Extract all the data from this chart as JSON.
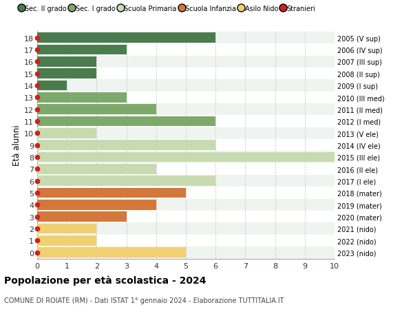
{
  "ages": [
    18,
    17,
    16,
    15,
    14,
    13,
    12,
    11,
    10,
    9,
    8,
    7,
    6,
    5,
    4,
    3,
    2,
    1,
    0
  ],
  "years": [
    "2005 (V sup)",
    "2006 (IV sup)",
    "2007 (III sup)",
    "2008 (II sup)",
    "2009 (I sup)",
    "2010 (III med)",
    "2011 (II med)",
    "2012 (I med)",
    "2013 (V ele)",
    "2014 (IV ele)",
    "2015 (III ele)",
    "2016 (II ele)",
    "2017 (I ele)",
    "2018 (mater)",
    "2019 (mater)",
    "2020 (mater)",
    "2021 (nido)",
    "2022 (nido)",
    "2023 (nido)"
  ],
  "values": [
    6,
    3,
    2,
    2,
    1,
    3,
    4,
    6,
    2,
    6,
    10,
    4,
    6,
    5,
    4,
    3,
    2,
    2,
    5
  ],
  "colors": [
    "#4a7c4e",
    "#4a7c4e",
    "#4a7c4e",
    "#4a7c4e",
    "#4a7c4e",
    "#7daa6b",
    "#7daa6b",
    "#7daa6b",
    "#c8dbb0",
    "#c8dbb0",
    "#c8dbb0",
    "#c8dbb0",
    "#c8dbb0",
    "#d4773a",
    "#d4773a",
    "#d4773a",
    "#f0d070",
    "#f0d070",
    "#f0d070"
  ],
  "row_bg_colors": [
    "#e8ede8",
    "#f5f5f5",
    "#e8ede8",
    "#f5f5f5",
    "#e8ede8",
    "#f5f5f5",
    "#e8ede8",
    "#f5f5f5",
    "#e8ede8",
    "#f5f5f5",
    "#e8ede8",
    "#f5f5f5",
    "#e8ede8",
    "#f5f5f5",
    "#e8ede8",
    "#f5f5f5",
    "#e8ede8",
    "#f5f5f5",
    "#e8ede8"
  ],
  "stranieri_color": "#cc2222",
  "legend_labels": [
    "Sec. II grado",
    "Sec. I grado",
    "Scuola Primaria",
    "Scuola Infanzia",
    "Asilo Nido",
    "Stranieri"
  ],
  "legend_colors": [
    "#4a7c4e",
    "#7daa6b",
    "#c8dbb0",
    "#d4773a",
    "#f0d070",
    "#cc2222"
  ],
  "title": "Popolazione per età scolastica - 2024",
  "subtitle": "COMUNE DI ROIATE (RM) - Dati ISTAT 1° gennaio 2024 - Elaborazione TUTTITALIA.IT",
  "ylabel": "Età alunni",
  "xlim": [
    0,
    10
  ],
  "xticks": [
    0,
    1,
    2,
    3,
    4,
    5,
    6,
    7,
    8,
    9,
    10
  ],
  "background_color": "#ffffff",
  "grid_color": "#cccccc",
  "bar_height": 0.85
}
